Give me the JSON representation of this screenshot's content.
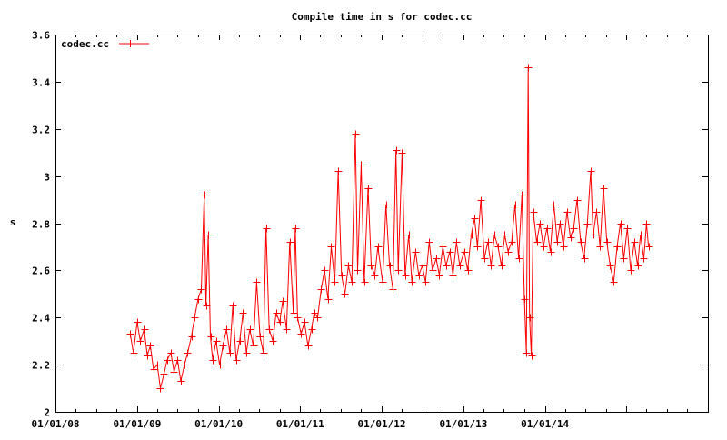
{
  "chart_data": {
    "type": "line",
    "title": "Compile time in s for codec.cc",
    "xlabel": "",
    "ylabel": "s",
    "xlim": [
      "2008-01-01",
      "2016-01-01"
    ],
    "ylim": [
      2,
      3.6
    ],
    "grid": false,
    "legend_placement": "top-left",
    "yticks": [
      "2",
      "2.2",
      "2.4",
      "2.6",
      "2.8",
      "3",
      "3.2",
      "3.4",
      "3.6"
    ],
    "xticks": [
      {
        "date": "2008-01-01",
        "label": "01/01/08"
      },
      {
        "date": "2009-01-01",
        "label": "01/01/09"
      },
      {
        "date": "2010-01-01",
        "label": "01/01/10"
      },
      {
        "date": "2011-01-01",
        "label": "01/01/11"
      },
      {
        "date": "2012-01-01",
        "label": "01/01/12"
      },
      {
        "date": "2013-01-01",
        "label": "01/01/13"
      },
      {
        "date": "2014-01-01",
        "label": "01/01/14"
      }
    ],
    "series": [
      {
        "name": "codec.cc",
        "color": "#ff0000",
        "points": [
          [
            "2008-12-01",
            2.33
          ],
          [
            "2008-12-15",
            2.25
          ],
          [
            "2009-01-01",
            2.38
          ],
          [
            "2009-01-15",
            2.3
          ],
          [
            "2009-02-01",
            2.35
          ],
          [
            "2009-02-15",
            2.24
          ],
          [
            "2009-03-01",
            2.28
          ],
          [
            "2009-03-15",
            2.18
          ],
          [
            "2009-04-01",
            2.2
          ],
          [
            "2009-04-15",
            2.1
          ],
          [
            "2009-05-01",
            2.16
          ],
          [
            "2009-05-15",
            2.22
          ],
          [
            "2009-06-01",
            2.25
          ],
          [
            "2009-06-15",
            2.17
          ],
          [
            "2009-07-01",
            2.22
          ],
          [
            "2009-07-15",
            2.13
          ],
          [
            "2009-08-01",
            2.2
          ],
          [
            "2009-08-15",
            2.25
          ],
          [
            "2009-09-01",
            2.32
          ],
          [
            "2009-09-15",
            2.4
          ],
          [
            "2009-10-01",
            2.48
          ],
          [
            "2009-10-15",
            2.52
          ],
          [
            "2009-10-28",
            2.92
          ],
          [
            "2009-11-05",
            2.45
          ],
          [
            "2009-11-15",
            2.75
          ],
          [
            "2009-11-25",
            2.32
          ],
          [
            "2009-12-05",
            2.22
          ],
          [
            "2009-12-20",
            2.3
          ],
          [
            "2010-01-05",
            2.2
          ],
          [
            "2010-01-20",
            2.28
          ],
          [
            "2010-02-05",
            2.35
          ],
          [
            "2010-02-20",
            2.25
          ],
          [
            "2010-03-05",
            2.45
          ],
          [
            "2010-03-20",
            2.22
          ],
          [
            "2010-04-05",
            2.3
          ],
          [
            "2010-04-20",
            2.42
          ],
          [
            "2010-05-05",
            2.25
          ],
          [
            "2010-05-20",
            2.35
          ],
          [
            "2010-06-05",
            2.28
          ],
          [
            "2010-06-20",
            2.55
          ],
          [
            "2010-07-05",
            2.32
          ],
          [
            "2010-07-20",
            2.25
          ],
          [
            "2010-08-01",
            2.78
          ],
          [
            "2010-08-15",
            2.35
          ],
          [
            "2010-09-01",
            2.3
          ],
          [
            "2010-09-15",
            2.42
          ],
          [
            "2010-10-01",
            2.38
          ],
          [
            "2010-10-15",
            2.47
          ],
          [
            "2010-11-01",
            2.35
          ],
          [
            "2010-11-15",
            2.72
          ],
          [
            "2010-12-01",
            2.42
          ],
          [
            "2010-12-10",
            2.78
          ],
          [
            "2010-12-20",
            2.4
          ],
          [
            "2011-01-05",
            2.33
          ],
          [
            "2011-01-20",
            2.38
          ],
          [
            "2011-02-05",
            2.28
          ],
          [
            "2011-02-20",
            2.35
          ],
          [
            "2011-03-05",
            2.42
          ],
          [
            "2011-03-20",
            2.4
          ],
          [
            "2011-04-05",
            2.52
          ],
          [
            "2011-04-20",
            2.6
          ],
          [
            "2011-05-05",
            2.48
          ],
          [
            "2011-05-20",
            2.7
          ],
          [
            "2011-06-05",
            2.55
          ],
          [
            "2011-06-20",
            3.02
          ],
          [
            "2011-07-05",
            2.58
          ],
          [
            "2011-07-20",
            2.5
          ],
          [
            "2011-08-05",
            2.62
          ],
          [
            "2011-08-20",
            2.55
          ],
          [
            "2011-09-05",
            3.18
          ],
          [
            "2011-09-15",
            2.6
          ],
          [
            "2011-10-01",
            3.05
          ],
          [
            "2011-10-15",
            2.55
          ],
          [
            "2011-11-01",
            2.95
          ],
          [
            "2011-11-15",
            2.62
          ],
          [
            "2011-12-01",
            2.58
          ],
          [
            "2011-12-15",
            2.7
          ],
          [
            "2012-01-05",
            2.55
          ],
          [
            "2012-01-20",
            2.88
          ],
          [
            "2012-02-05",
            2.62
          ],
          [
            "2012-02-20",
            2.52
          ],
          [
            "2012-03-05",
            3.11
          ],
          [
            "2012-03-15",
            2.6
          ],
          [
            "2012-04-01",
            3.1
          ],
          [
            "2012-04-15",
            2.58
          ],
          [
            "2012-05-01",
            2.75
          ],
          [
            "2012-05-15",
            2.55
          ],
          [
            "2012-06-01",
            2.68
          ],
          [
            "2012-06-15",
            2.58
          ],
          [
            "2012-07-01",
            2.62
          ],
          [
            "2012-07-15",
            2.55
          ],
          [
            "2012-08-01",
            2.72
          ],
          [
            "2012-08-15",
            2.6
          ],
          [
            "2012-09-01",
            2.65
          ],
          [
            "2012-09-15",
            2.58
          ],
          [
            "2012-10-01",
            2.7
          ],
          [
            "2012-10-15",
            2.62
          ],
          [
            "2012-11-01",
            2.68
          ],
          [
            "2012-11-15",
            2.58
          ],
          [
            "2012-12-01",
            2.72
          ],
          [
            "2012-12-15",
            2.62
          ],
          [
            "2013-01-05",
            2.68
          ],
          [
            "2013-01-20",
            2.6
          ],
          [
            "2013-02-05",
            2.75
          ],
          [
            "2013-02-20",
            2.82
          ],
          [
            "2013-03-05",
            2.7
          ],
          [
            "2013-03-20",
            2.9
          ],
          [
            "2013-04-05",
            2.65
          ],
          [
            "2013-04-20",
            2.72
          ],
          [
            "2013-05-05",
            2.62
          ],
          [
            "2013-05-20",
            2.75
          ],
          [
            "2013-06-05",
            2.7
          ],
          [
            "2013-06-20",
            2.62
          ],
          [
            "2013-07-05",
            2.75
          ],
          [
            "2013-07-20",
            2.68
          ],
          [
            "2013-08-05",
            2.72
          ],
          [
            "2013-08-20",
            2.88
          ],
          [
            "2013-09-05",
            2.65
          ],
          [
            "2013-09-20",
            2.92
          ],
          [
            "2013-10-01",
            2.48
          ],
          [
            "2013-10-10",
            2.25
          ],
          [
            "2013-10-18",
            3.46
          ],
          [
            "2013-10-24",
            2.4
          ],
          [
            "2013-11-01",
            2.24
          ],
          [
            "2013-11-10",
            2.85
          ],
          [
            "2013-11-25",
            2.72
          ],
          [
            "2013-12-10",
            2.8
          ],
          [
            "2013-12-25",
            2.7
          ],
          [
            "2014-01-10",
            2.78
          ],
          [
            "2014-01-25",
            2.68
          ],
          [
            "2014-02-10",
            2.88
          ],
          [
            "2014-02-25",
            2.72
          ],
          [
            "2014-03-10",
            2.8
          ],
          [
            "2014-03-25",
            2.7
          ],
          [
            "2014-04-10",
            2.85
          ],
          [
            "2014-04-25",
            2.74
          ],
          [
            "2014-05-10",
            2.78
          ],
          [
            "2014-05-25",
            2.9
          ],
          [
            "2014-06-10",
            2.72
          ],
          [
            "2014-06-25",
            2.65
          ],
          [
            "2014-07-10",
            2.8
          ],
          [
            "2014-07-25",
            3.02
          ],
          [
            "2014-08-05",
            2.75
          ],
          [
            "2014-08-20",
            2.85
          ],
          [
            "2014-09-05",
            2.7
          ],
          [
            "2014-09-20",
            2.95
          ],
          [
            "2014-10-05",
            2.72
          ],
          [
            "2014-10-20",
            2.62
          ],
          [
            "2014-11-05",
            2.55
          ],
          [
            "2014-11-20",
            2.7
          ],
          [
            "2014-12-05",
            2.8
          ],
          [
            "2014-12-20",
            2.65
          ],
          [
            "2015-01-05",
            2.78
          ],
          [
            "2015-01-20",
            2.6
          ],
          [
            "2015-02-05",
            2.72
          ],
          [
            "2015-02-20",
            2.62
          ],
          [
            "2015-03-05",
            2.75
          ],
          [
            "2015-03-20",
            2.65
          ],
          [
            "2015-04-01",
            2.8
          ],
          [
            "2015-04-10",
            2.7
          ]
        ]
      }
    ]
  }
}
